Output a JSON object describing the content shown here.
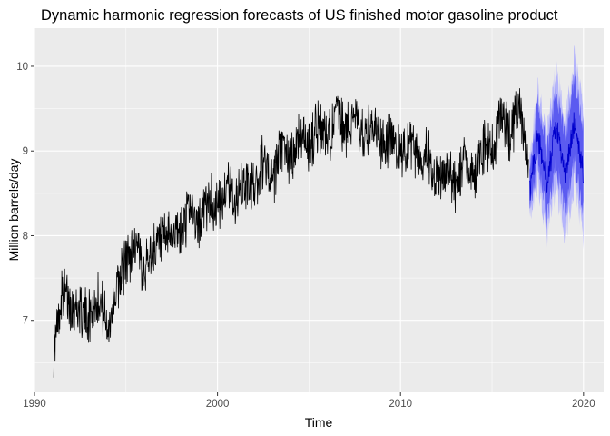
{
  "chart_data": {
    "type": "line",
    "title": "Dynamic harmonic regression forecasts of US finished motor gasoline product",
    "xlabel": "Time",
    "ylabel": "Million barrels/day",
    "xlim": [
      1990.0,
      2021.1
    ],
    "ylim": [
      6.15,
      10.45
    ],
    "x_ticks": [
      1990,
      2000,
      2010,
      2020
    ],
    "x_tick_labels": [
      "1990",
      "2000",
      "2010",
      "2020"
    ],
    "y_ticks": [
      7,
      8,
      9,
      10
    ],
    "y_tick_labels": [
      "7",
      "8",
      "9",
      "10"
    ],
    "grid": true,
    "legend": "none",
    "colors": {
      "panel": "#ebebeb",
      "grid": "#ffffff",
      "history": "#000000",
      "forecast": "#0000cc",
      "band80": "#5b5bf0",
      "band95": "#b3b3fb"
    },
    "series": [
      {
        "role": "history",
        "x": [
          1991.05,
          1991.5,
          1992.0,
          1992.5,
          1993.0,
          1993.5,
          1994.0,
          1994.5,
          1995.0,
          1995.5,
          1996.0,
          1996.5,
          1997.0,
          1997.5,
          1998.0,
          1998.5,
          1999.0,
          1999.5,
          2000.0,
          2000.5,
          2001.0,
          2001.5,
          2002.0,
          2002.5,
          2003.0,
          2003.5,
          2004.0,
          2004.5,
          2005.0,
          2005.5,
          2006.0,
          2006.5,
          2007.0,
          2007.5,
          2008.0,
          2008.5,
          2009.0,
          2009.5,
          2010.0,
          2010.5,
          2011.0,
          2011.5,
          2012.0,
          2012.5,
          2013.0,
          2013.5,
          2014.0,
          2014.5,
          2015.0,
          2015.5,
          2016.0,
          2016.5,
          2017.0
        ],
        "values": [
          6.6,
          7.35,
          7.2,
          7.1,
          7.05,
          7.3,
          6.9,
          7.4,
          7.7,
          7.9,
          7.6,
          7.85,
          7.9,
          8.05,
          8.0,
          8.35,
          8.1,
          8.45,
          8.3,
          8.6,
          8.4,
          8.6,
          8.55,
          8.9,
          8.6,
          9.05,
          8.85,
          9.2,
          9.05,
          9.3,
          9.1,
          9.45,
          9.2,
          9.5,
          9.1,
          9.3,
          9.05,
          9.2,
          8.95,
          9.15,
          8.9,
          9.0,
          8.6,
          8.75,
          8.55,
          8.9,
          8.7,
          9.05,
          9.0,
          9.35,
          9.2,
          9.5,
          8.8
        ]
      },
      {
        "role": "forecast",
        "x": [
          2017.05,
          2017.5,
          2018.0,
          2018.5,
          2019.0,
          2019.5,
          2020.0
        ],
        "values": [
          8.5,
          9.2,
          8.6,
          9.3,
          8.7,
          9.35,
          8.75
        ],
        "lower_80": [
          8.3,
          8.85,
          8.2,
          8.85,
          8.25,
          8.85,
          8.25
        ],
        "upper_80": [
          8.75,
          9.55,
          9.0,
          9.75,
          9.15,
          9.85,
          9.25
        ],
        "lower_95": [
          8.2,
          8.65,
          8.0,
          8.6,
          8.0,
          8.6,
          8.0
        ],
        "upper_95": [
          8.85,
          9.75,
          9.2,
          9.95,
          9.35,
          10.1,
          9.5
        ]
      }
    ]
  }
}
